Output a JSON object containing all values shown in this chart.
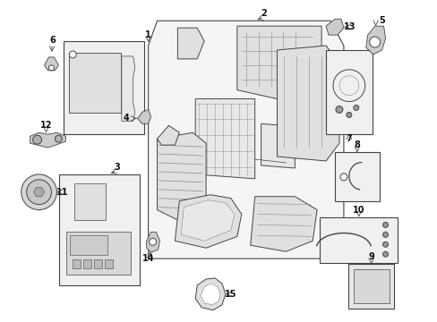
{
  "bg_color": "#ffffff",
  "fig_width": 4.89,
  "fig_height": 3.6,
  "dpi": 100,
  "line_color": "#444444",
  "fill_light": "#f0f0f0",
  "fill_mid": "#e0e0e0",
  "fill_dark": "#cccccc",
  "label_fontsize": 7,
  "lw": 0.7
}
